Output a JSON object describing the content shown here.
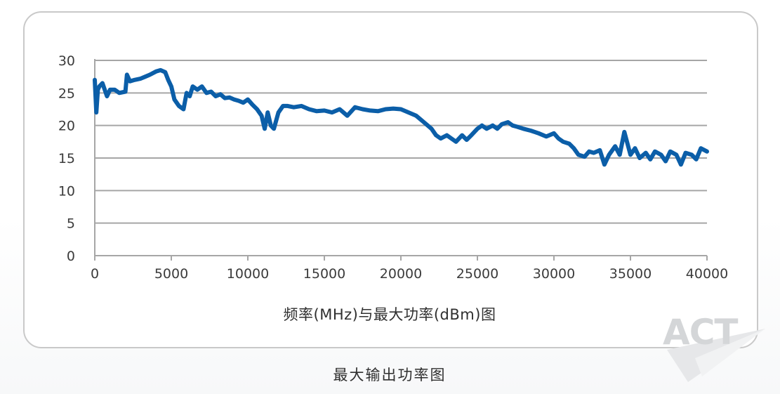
{
  "chart_data": {
    "type": "line",
    "title": "",
    "xlabel": "频率(MHz)与最大功率(dBm)图",
    "ylabel": "",
    "xlim": [
      0,
      40000
    ],
    "ylim": [
      0,
      30
    ],
    "x_ticks": [
      "0",
      "5000",
      "10000",
      "15000",
      "20000",
      "25000",
      "30000",
      "35000",
      "40000"
    ],
    "y_ticks": [
      "0",
      "5",
      "10",
      "15",
      "20",
      "25",
      "30"
    ],
    "grid": true,
    "series_color": "#0b5ea8",
    "grid_color": "#a6a6a6",
    "series": [
      {
        "x": [
          0,
          100,
          200,
          300,
          500,
          800,
          1000,
          1300,
          1600,
          2000,
          2100,
          2300,
          2600,
          3000,
          3300,
          3600,
          4000,
          4300,
          4600,
          4800,
          5000,
          5200,
          5500,
          5800,
          6000,
          6200,
          6400,
          6700,
          7000,
          7300,
          7600,
          7900,
          8200,
          8500,
          8800,
          9100,
          9400,
          9700,
          10000,
          10300,
          10600,
          10900,
          11100,
          11300,
          11500,
          11700,
          12000,
          12300,
          12600,
          13000,
          13500,
          14000,
          14500,
          15000,
          15500,
          16000,
          16500,
          17000,
          17500,
          18000,
          18500,
          19000,
          19500,
          20000,
          20500,
          21000,
          21500,
          22000,
          22300,
          22600,
          23000,
          23300,
          23600,
          24000,
          24300,
          24600,
          25000,
          25300,
          25600,
          26000,
          26300,
          26600,
          27000,
          27300,
          27600,
          28000,
          28500,
          29000,
          29500,
          30000,
          30300,
          30600,
          31000,
          31300,
          31600,
          32000,
          32300,
          32600,
          33000,
          33300,
          33600,
          34000,
          34300,
          34600,
          35000,
          35300,
          35600,
          36000,
          36300,
          36600,
          37000,
          37300,
          37600,
          38000,
          38300,
          38600,
          39000,
          39300,
          39600,
          40000
        ],
        "values": [
          27,
          22,
          25.5,
          26,
          26.5,
          24.5,
          25.5,
          25.5,
          25,
          25.2,
          27.8,
          26.8,
          27,
          27.2,
          27.5,
          27.8,
          28.3,
          28.5,
          28.2,
          27,
          26,
          24,
          23,
          22.5,
          25,
          24.5,
          26,
          25.5,
          26,
          25,
          25.2,
          24.5,
          24.8,
          24.2,
          24.3,
          24,
          23.8,
          23.5,
          24,
          23.2,
          22.5,
          21.5,
          19.5,
          22,
          20,
          19.5,
          22,
          23,
          23,
          22.8,
          23,
          22.5,
          22.2,
          22.3,
          22,
          22.5,
          21.5,
          22.8,
          22.5,
          22.3,
          22.2,
          22.5,
          22.6,
          22.5,
          22,
          21.5,
          20.5,
          19.5,
          18.5,
          18,
          18.5,
          18,
          17.5,
          18.5,
          17.8,
          18.5,
          19.5,
          20,
          19.5,
          20,
          19.5,
          20.2,
          20.5,
          20,
          19.8,
          19.5,
          19.2,
          18.8,
          18.3,
          18.8,
          18,
          17.5,
          17.2,
          16.5,
          15.5,
          15.2,
          16,
          15.8,
          16.2,
          14,
          15.5,
          16.8,
          15.5,
          19,
          15.5,
          16.5,
          15,
          15.8,
          14.8,
          16,
          15.5,
          14.5,
          16,
          15.5,
          14,
          15.8,
          15.5,
          14.8,
          16.5,
          16
        ]
      }
    ]
  },
  "caption": "最大输出功率图",
  "logo_text": "ACT"
}
